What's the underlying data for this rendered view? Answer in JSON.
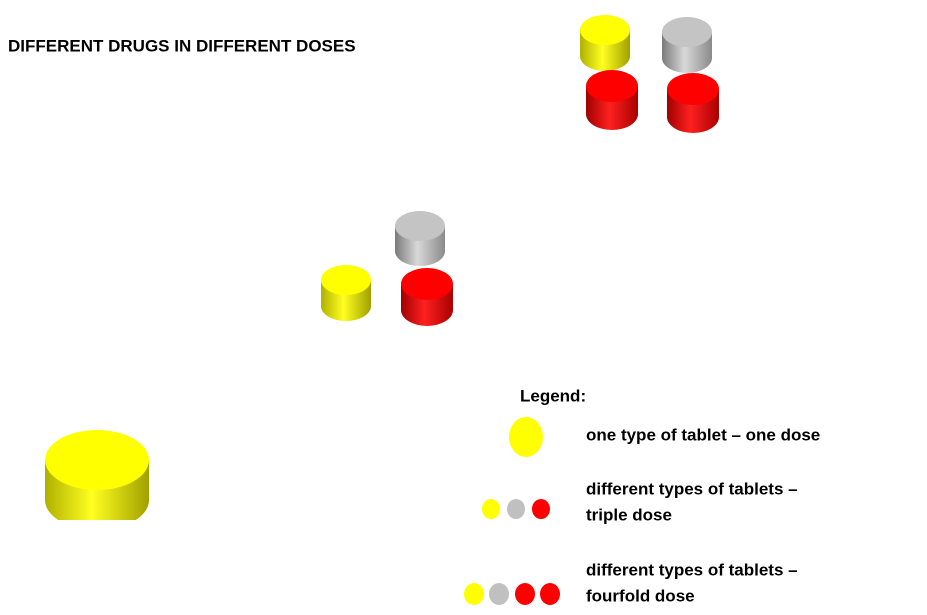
{
  "title": "DIFFERENT DRUGS IN DIFFERENT DOSES",
  "legend": {
    "title": "Legend:",
    "items": [
      {
        "lines": [
          "one type of tablet – one dose"
        ]
      },
      {
        "lines": [
          "different types of tablets –",
          "triple dose"
        ]
      },
      {
        "lines": [
          "different types of tablets –",
          "fourfold dose"
        ]
      }
    ]
  }
}
